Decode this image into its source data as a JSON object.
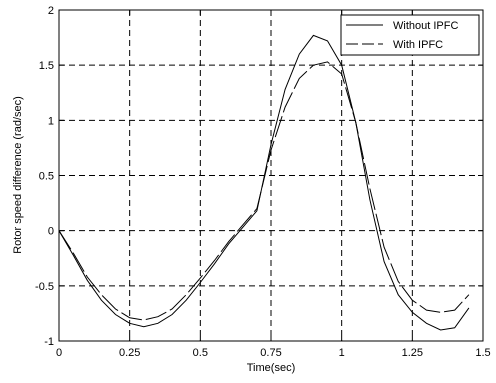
{
  "chart_data": {
    "type": "line",
    "title": "",
    "xlabel": "Time(sec)",
    "ylabel": "Rotor speed difference (rad/sec)",
    "xlim": [
      0,
      1.5
    ],
    "ylim": [
      -1,
      2
    ],
    "xticks": [
      0,
      0.25,
      0.5,
      0.75,
      1,
      1.25,
      1.5
    ],
    "xtick_labels": [
      "0",
      "0.25",
      "0.5",
      "0.75",
      "1",
      "1.25",
      "1.5"
    ],
    "yticks": [
      -1,
      -0.5,
      0,
      0.5,
      1,
      1.5,
      2
    ],
    "ytick_labels": [
      "-1",
      "-0.5",
      "0",
      "0.5",
      "1",
      "1.5",
      "2"
    ],
    "grid": true,
    "legend_position": "top-right",
    "series": [
      {
        "name": "Without IPFC",
        "style": "solid",
        "color": "#000000",
        "x": [
          0,
          0.05,
          0.1,
          0.15,
          0.2,
          0.25,
          0.3,
          0.35,
          0.4,
          0.45,
          0.5,
          0.55,
          0.6,
          0.65,
          0.7,
          0.75,
          0.8,
          0.85,
          0.9,
          0.95,
          1.0,
          1.05,
          1.1,
          1.15,
          1.2,
          1.25,
          1.3,
          1.35,
          1.4,
          1.45
        ],
        "y": [
          0,
          -0.22,
          -0.45,
          -0.63,
          -0.76,
          -0.84,
          -0.87,
          -0.84,
          -0.76,
          -0.63,
          -0.47,
          -0.3,
          -0.12,
          0.03,
          0.18,
          0.78,
          1.28,
          1.6,
          1.77,
          1.72,
          1.5,
          0.98,
          0.28,
          -0.28,
          -0.58,
          -0.74,
          -0.84,
          -0.9,
          -0.88,
          -0.7
        ]
      },
      {
        "name": "With IPFC",
        "style": "dashed",
        "color": "#000000",
        "x": [
          0,
          0.05,
          0.1,
          0.15,
          0.2,
          0.25,
          0.3,
          0.35,
          0.4,
          0.45,
          0.5,
          0.55,
          0.6,
          0.65,
          0.7,
          0.75,
          0.8,
          0.85,
          0.9,
          0.95,
          1.0,
          1.05,
          1.1,
          1.15,
          1.2,
          1.25,
          1.3,
          1.35,
          1.4,
          1.45
        ],
        "y": [
          0,
          -0.2,
          -0.42,
          -0.58,
          -0.71,
          -0.79,
          -0.81,
          -0.78,
          -0.71,
          -0.58,
          -0.43,
          -0.27,
          -0.1,
          0.05,
          0.2,
          0.73,
          1.12,
          1.38,
          1.5,
          1.53,
          1.42,
          0.98,
          0.38,
          -0.15,
          -0.46,
          -0.63,
          -0.72,
          -0.74,
          -0.72,
          -0.58
        ]
      }
    ]
  }
}
